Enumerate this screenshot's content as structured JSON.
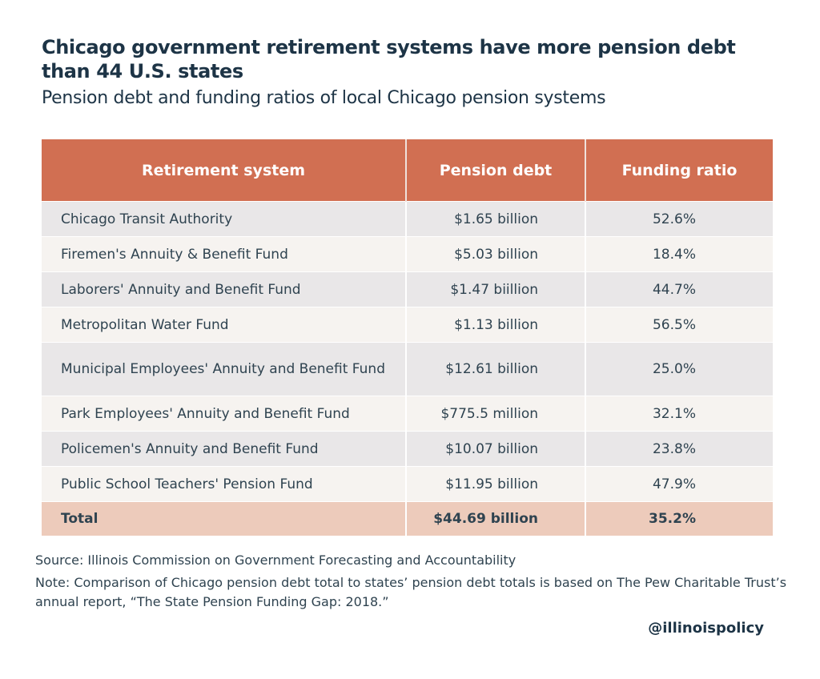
{
  "chart_data": {
    "type": "table",
    "title": "Chicago government retirement systems have more pension debt than 44 U.S. states",
    "subtitle": "Pension debt and funding ratios of local Chicago pension systems",
    "columns": [
      "Retirement system",
      "Pension debt",
      "Funding ratio"
    ],
    "rows": [
      [
        "Chicago Transit Authority",
        "$1.65 billion",
        "52.6%"
      ],
      [
        "Firemen's Annuity & Benefit Fund",
        "$5.03 billion",
        "18.4%"
      ],
      [
        "Laborers' Annuity and Benefit Fund",
        "$1.47 biillion",
        "44.7%"
      ],
      [
        "Metropolitan Water Fund",
        "$1.13 billion",
        "56.5%"
      ],
      [
        "Municipal Employees' Annuity and Benefit Fund",
        "$12.61 billion",
        "25.0%"
      ],
      [
        "Park Employees' Annuity and Benefit Fund",
        "$775.5 million",
        "32.1%"
      ],
      [
        "Policemen's Annuity and Benefit Fund",
        "$10.07 billion",
        "23.8%"
      ],
      [
        "Public School Teachers' Pension Fund",
        "$11.95 billion",
        "47.9%"
      ]
    ],
    "total": [
      "Total",
      "$44.69 billion",
      "35.2%"
    ],
    "colors": {
      "header": "#d16f52",
      "row_odd": "#e9e7e8",
      "row_even": "#f6f3f0",
      "total": "#edcbbb"
    }
  },
  "footer": {
    "source": "Source: Illinois Commission on Government Forecasting and Accountability",
    "note": "Note: Comparison of  Chicago pension debt total to states’ pension debt totals is based on The Pew Charitable Trust’s annual report, “The State Pension Funding Gap: 2018.”",
    "handle": "@illinoispolicy"
  }
}
